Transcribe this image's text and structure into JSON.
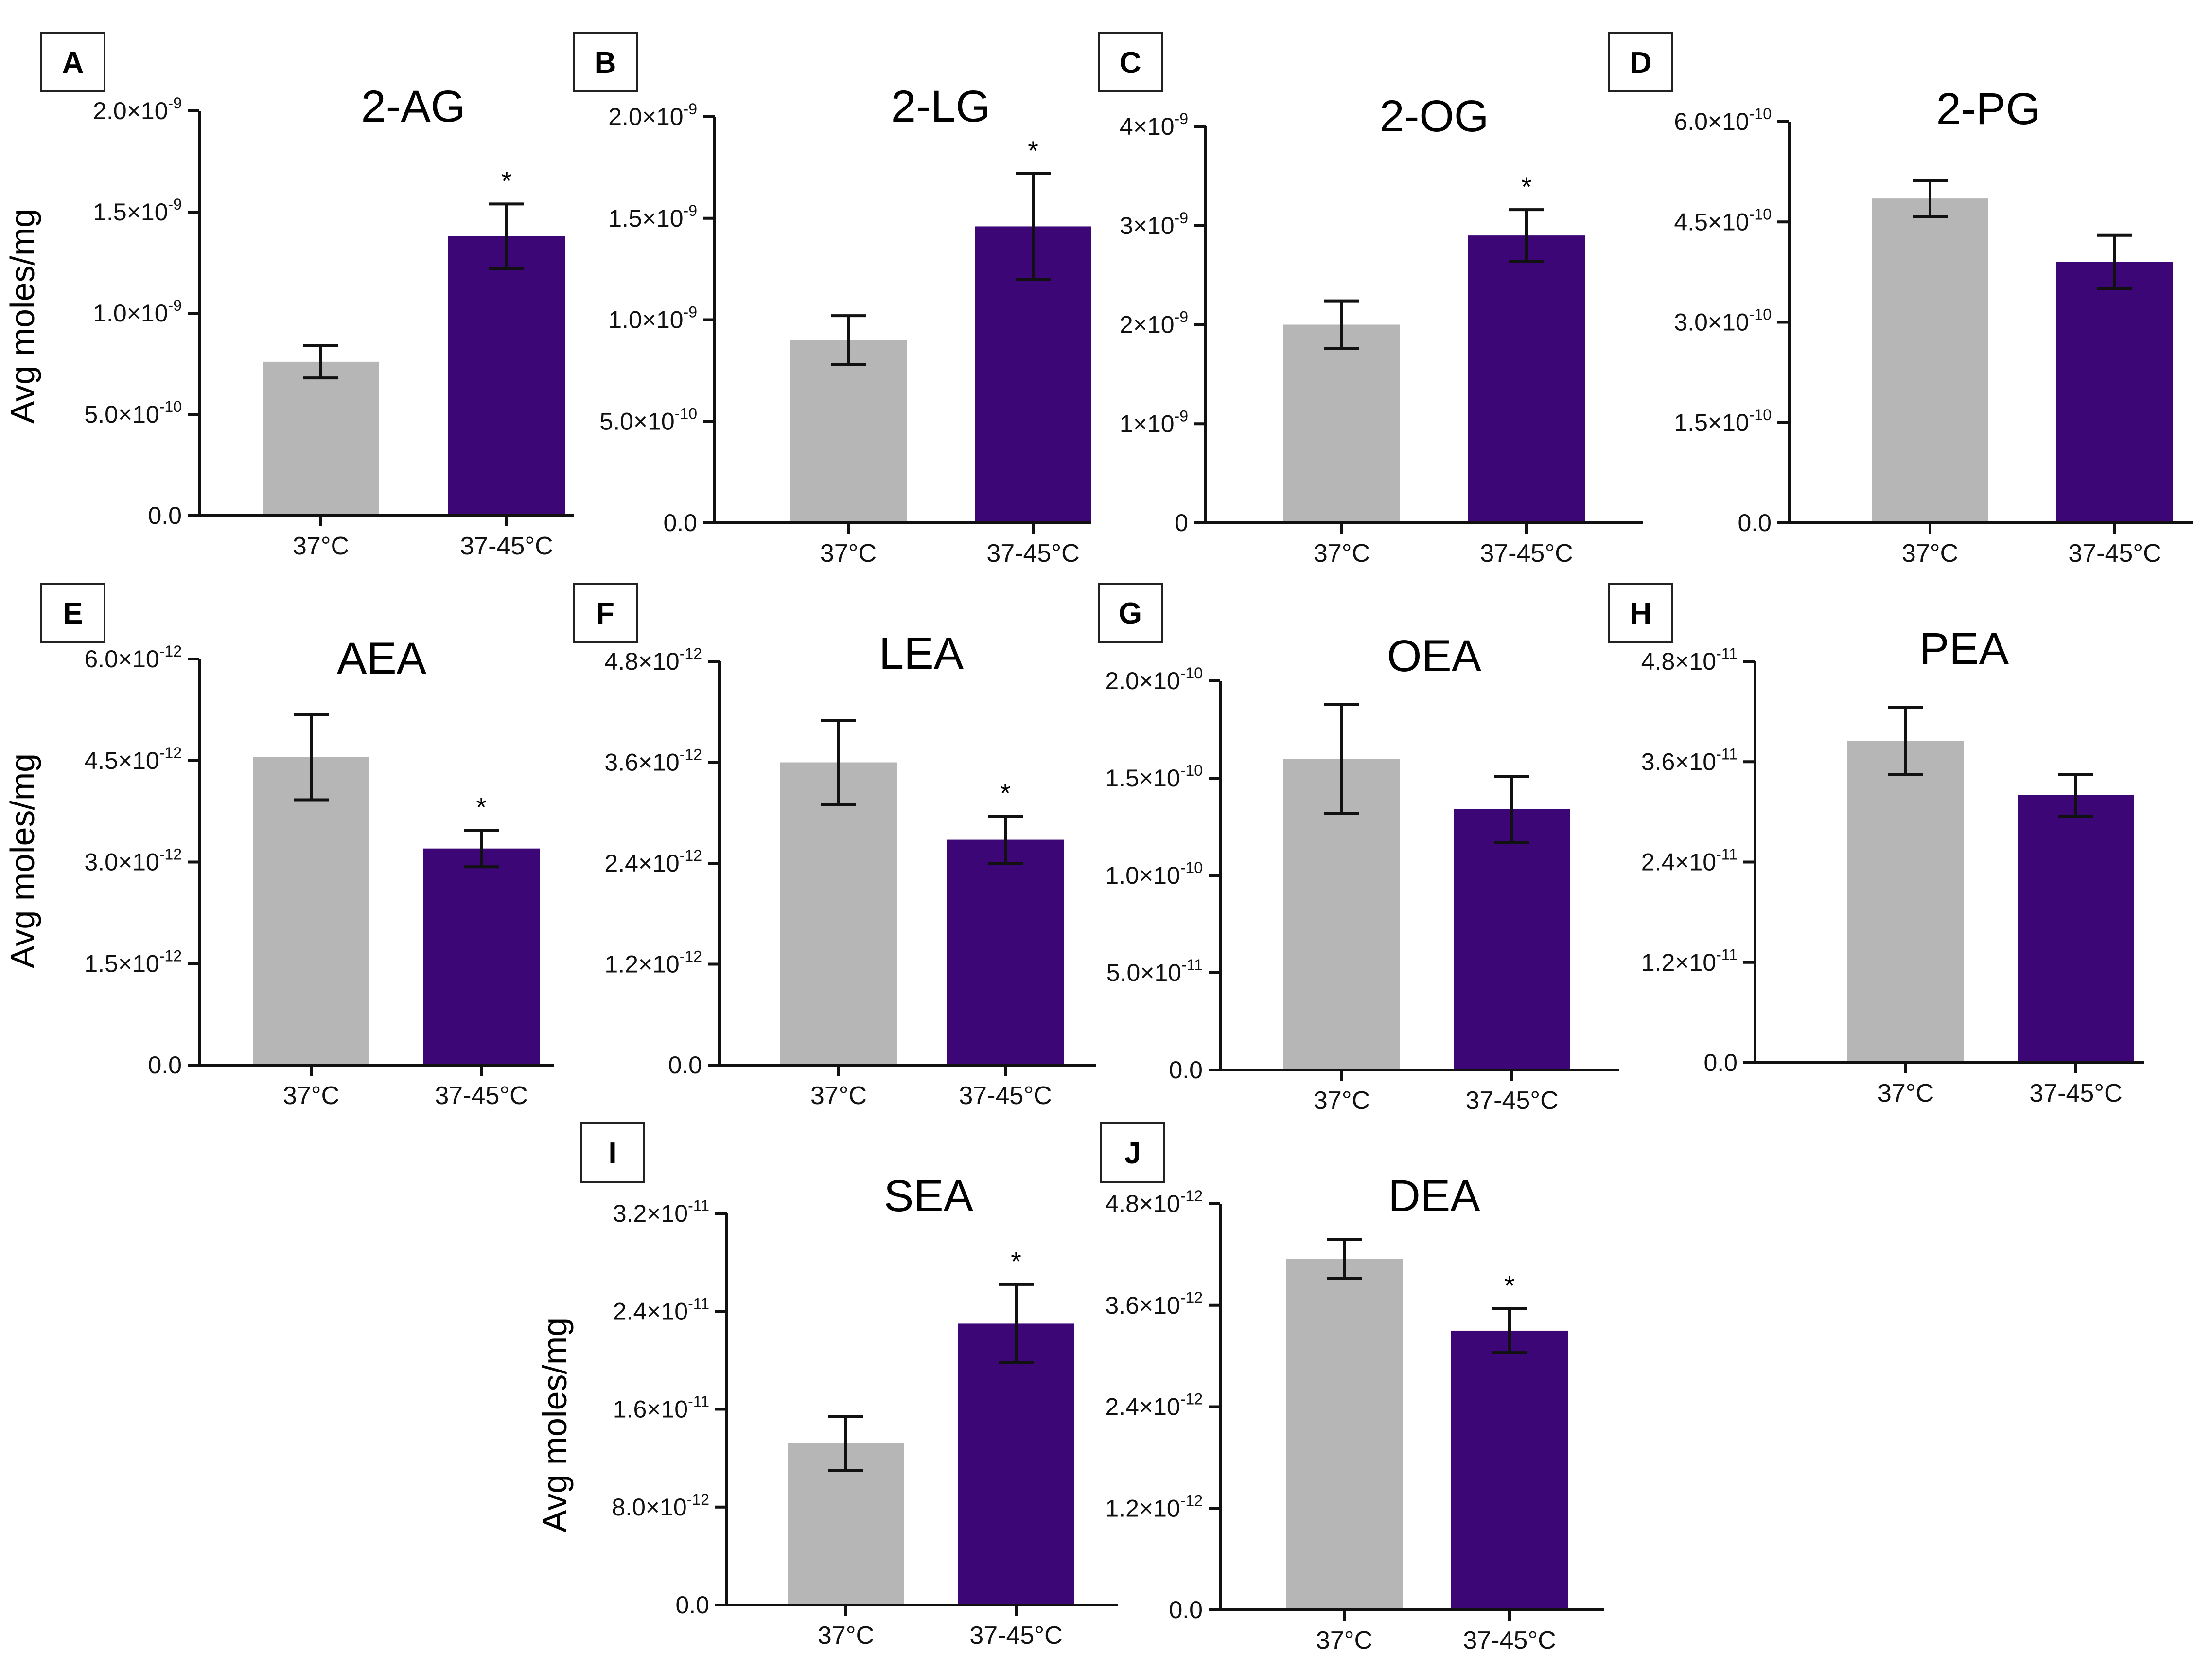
{
  "colors": {
    "control": "#b6b6b6",
    "treated": "#3d0676",
    "axis": "#111111"
  },
  "chart_data": [
    {
      "panel": "A",
      "type": "bar",
      "title": "2-AG",
      "ylabel": "Avg moles/mg",
      "categories": [
        "37°C",
        "37-45°C"
      ],
      "values": [
        7.6e-10,
        1.38e-09
      ],
      "errors": [
        8e-11,
        1.6e-10
      ],
      "significant": [
        false,
        true
      ],
      "sig_mark": "*",
      "ylim": [
        0,
        2e-09
      ],
      "ticks": [
        0,
        5e-10,
        1e-09,
        1.5e-09,
        2e-09
      ],
      "tick_labels": [
        {
          "m": "0.0",
          "e": ""
        },
        {
          "m": "5.0×10",
          "e": "-10"
        },
        {
          "m": "1.0×10",
          "e": "-9"
        },
        {
          "m": "1.5×10",
          "e": "-9"
        },
        {
          "m": "2.0×10",
          "e": "-9"
        }
      ]
    },
    {
      "panel": "B",
      "type": "bar",
      "title": "2-LG",
      "ylabel": "",
      "categories": [
        "37°C",
        "37-45°C"
      ],
      "values": [
        9e-10,
        1.46e-09
      ],
      "errors": [
        1.2e-10,
        2.6e-10
      ],
      "significant": [
        false,
        true
      ],
      "sig_mark": "*",
      "ylim": [
        0,
        2e-09
      ],
      "ticks": [
        0,
        5e-10,
        1e-09,
        1.5e-09,
        2e-09
      ],
      "tick_labels": [
        {
          "m": "0.0",
          "e": ""
        },
        {
          "m": "5.0×10",
          "e": "-10"
        },
        {
          "m": "1.0×10",
          "e": "-9"
        },
        {
          "m": "1.5×10",
          "e": "-9"
        },
        {
          "m": "2.0×10",
          "e": "-9"
        }
      ]
    },
    {
      "panel": "C",
      "type": "bar",
      "title": "2-OG",
      "ylabel": "",
      "categories": [
        "37°C",
        "37-45°C"
      ],
      "values": [
        2e-09,
        2.9e-09
      ],
      "errors": [
        2.4e-10,
        2.6e-10
      ],
      "significant": [
        false,
        true
      ],
      "sig_mark": "*",
      "ylim": [
        0,
        4e-09
      ],
      "ticks": [
        0,
        1e-09,
        2e-09,
        3e-09,
        4e-09
      ],
      "tick_labels": [
        {
          "m": "0",
          "e": ""
        },
        {
          "m": "1×10",
          "e": "-9"
        },
        {
          "m": "2×10",
          "e": "-9"
        },
        {
          "m": "3×10",
          "e": "-9"
        },
        {
          "m": "4×10",
          "e": "-9"
        }
      ]
    },
    {
      "panel": "D",
      "type": "bar",
      "title": "2-PG",
      "ylabel": "",
      "categories": [
        "37°C",
        "37-45°C"
      ],
      "values": [
        4.85e-10,
        3.9e-10
      ],
      "errors": [
        2.7e-11,
        4e-11
      ],
      "significant": [
        false,
        false
      ],
      "sig_mark": "*",
      "ylim": [
        0,
        6e-10
      ],
      "ticks": [
        0,
        1.5e-10,
        3e-10,
        4.5e-10,
        6e-10
      ],
      "tick_labels": [
        {
          "m": "0.0",
          "e": ""
        },
        {
          "m": "1.5×10",
          "e": "-10"
        },
        {
          "m": "3.0×10",
          "e": "-10"
        },
        {
          "m": "4.5×10",
          "e": "-10"
        },
        {
          "m": "6.0×10",
          "e": "-10"
        }
      ]
    },
    {
      "panel": "E",
      "type": "bar",
      "title": "AEA",
      "ylabel": "Avg moles/mg",
      "categories": [
        "37°C",
        "37-45°C"
      ],
      "values": [
        4.55e-12,
        3.2e-12
      ],
      "errors": [
        6.3e-13,
        2.7e-13
      ],
      "significant": [
        false,
        true
      ],
      "sig_mark": "*",
      "ylim": [
        0,
        6e-12
      ],
      "ticks": [
        0,
        1.5e-12,
        3e-12,
        4.5e-12,
        6e-12
      ],
      "tick_labels": [
        {
          "m": "0.0",
          "e": ""
        },
        {
          "m": "1.5×10",
          "e": "-12"
        },
        {
          "m": "3.0×10",
          "e": "-12"
        },
        {
          "m": "4.5×10",
          "e": "-12"
        },
        {
          "m": "6.0×10",
          "e": "-12"
        }
      ]
    },
    {
      "panel": "F",
      "type": "bar",
      "title": "LEA",
      "ylabel": "",
      "categories": [
        "37°C",
        "37-45°C"
      ],
      "values": [
        3.6e-12,
        2.68e-12
      ],
      "errors": [
        5e-13,
        2.8e-13
      ],
      "significant": [
        false,
        true
      ],
      "sig_mark": "*",
      "ylim": [
        0,
        4.8e-12
      ],
      "ticks": [
        0,
        1.2e-12,
        2.4e-12,
        3.6e-12,
        4.8e-12
      ],
      "tick_labels": [
        {
          "m": "0.0",
          "e": ""
        },
        {
          "m": "1.2×10",
          "e": "-12"
        },
        {
          "m": "2.4×10",
          "e": "-12"
        },
        {
          "m": "3.6×10",
          "e": "-12"
        },
        {
          "m": "4.8×10",
          "e": "-12"
        }
      ]
    },
    {
      "panel": "G",
      "type": "bar",
      "title": "OEA",
      "ylabel": "",
      "categories": [
        "37°C",
        "37-45°C"
      ],
      "values": [
        1.6e-10,
        1.34e-10
      ],
      "errors": [
        2.8e-11,
        1.7e-11
      ],
      "significant": [
        false,
        false
      ],
      "sig_mark": "*",
      "ylim": [
        0,
        2e-10
      ],
      "ticks": [
        0,
        5e-11,
        1e-10,
        1.5e-10,
        2e-10
      ],
      "tick_labels": [
        {
          "m": "0.0",
          "e": ""
        },
        {
          "m": "5.0×10",
          "e": "-11"
        },
        {
          "m": "1.0×10",
          "e": "-10"
        },
        {
          "m": "1.5×10",
          "e": "-10"
        },
        {
          "m": "2.0×10",
          "e": "-10"
        }
      ]
    },
    {
      "panel": "H",
      "type": "bar",
      "title": "PEA",
      "ylabel": "",
      "categories": [
        "37°C",
        "37-45°C"
      ],
      "values": [
        3.85e-11,
        3.2e-11
      ],
      "errors": [
        4e-12,
        2.5e-12
      ],
      "significant": [
        false,
        false
      ],
      "sig_mark": "*",
      "ylim": [
        0,
        4.8e-11
      ],
      "ticks": [
        0,
        1.2e-11,
        2.4e-11,
        3.6e-11,
        4.8e-11
      ],
      "tick_labels": [
        {
          "m": "0.0",
          "e": ""
        },
        {
          "m": "1.2×10",
          "e": "-11"
        },
        {
          "m": "2.4×10",
          "e": "-11"
        },
        {
          "m": "3.6×10",
          "e": "-11"
        },
        {
          "m": "4.8×10",
          "e": "-11"
        }
      ]
    },
    {
      "panel": "I",
      "type": "bar",
      "title": "SEA",
      "ylabel": "Avg moles/mg",
      "categories": [
        "37°C",
        "37-45°C"
      ],
      "values": [
        1.32e-11,
        2.3e-11
      ],
      "errors": [
        2.2e-12,
        3.2e-12
      ],
      "significant": [
        false,
        true
      ],
      "sig_mark": "*",
      "ylim": [
        0,
        3.2e-11
      ],
      "ticks": [
        0,
        8e-12,
        1.6e-11,
        2.4e-11,
        3.2e-11
      ],
      "tick_labels": [
        {
          "m": "0.0",
          "e": ""
        },
        {
          "m": "8.0×10",
          "e": "-12"
        },
        {
          "m": "1.6×10",
          "e": "-11"
        },
        {
          "m": "2.4×10",
          "e": "-11"
        },
        {
          "m": "3.2×10",
          "e": "-11"
        }
      ]
    },
    {
      "panel": "J",
      "type": "bar",
      "title": "DEA",
      "ylabel": "",
      "categories": [
        "37°C",
        "37-45°C"
      ],
      "values": [
        4.15e-12,
        3.3e-12
      ],
      "errors": [
        2.3e-13,
        2.6e-13
      ],
      "significant": [
        false,
        true
      ],
      "sig_mark": "*",
      "ylim": [
        0,
        4.8e-12
      ],
      "ticks": [
        0,
        1.2e-12,
        2.4e-12,
        3.6e-12,
        4.8e-12
      ],
      "tick_labels": [
        {
          "m": "0.0",
          "e": ""
        },
        {
          "m": "1.2×10",
          "e": "-12"
        },
        {
          "m": "2.4×10",
          "e": "-12"
        },
        {
          "m": "3.6×10",
          "e": "-12"
        },
        {
          "m": "4.8×10",
          "e": "-12"
        }
      ]
    }
  ]
}
